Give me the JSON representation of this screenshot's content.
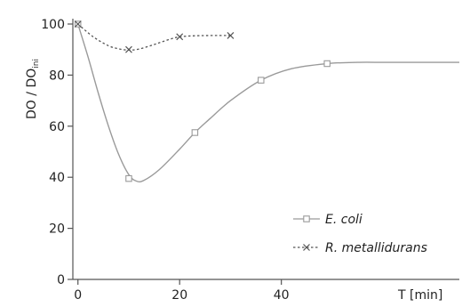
{
  "chart_data": {
    "type": "line",
    "xlabel": "T [min]",
    "ylabel_main": "DO / DO",
    "ylabel_sub": "ini",
    "xlim": [
      -1,
      75
    ],
    "ylim": [
      0,
      100
    ],
    "x_ticks": [
      0,
      20,
      40
    ],
    "y_ticks": [
      0,
      20,
      40,
      60,
      80,
      100
    ],
    "legend_position": "lower-right",
    "series": [
      {
        "name": "E. coli",
        "marker": "square",
        "line_style": "solid",
        "color": "#9a9a9a",
        "x": [
          0,
          10,
          23,
          36,
          49
        ],
        "y": [
          100,
          39.5,
          57.5,
          78,
          84.5
        ],
        "fit_x": [
          0,
          2,
          4,
          6,
          8,
          10,
          11.5,
          13,
          16,
          20,
          23,
          26,
          30,
          36,
          42,
          49,
          55,
          60,
          65,
          70,
          75
        ],
        "fit_y": [
          100,
          87,
          73,
          60,
          49,
          41,
          38.5,
          38.8,
          43,
          51,
          57.5,
          63,
          70,
          78,
          82.5,
          84.5,
          85,
          85,
          85,
          85,
          85
        ]
      },
      {
        "name": "R. metallidurans",
        "marker": "x",
        "line_style": "dotted",
        "color": "#555555",
        "x": [
          0,
          10,
          20,
          30
        ],
        "y": [
          100,
          90,
          95,
          95.5
        ],
        "fit_x": [
          0,
          3,
          6,
          8,
          10,
          12,
          15,
          18,
          20,
          23,
          26,
          30
        ],
        "fit_y": [
          100,
          95,
          91.5,
          90.3,
          89.8,
          90.2,
          92,
          94,
          95,
          95.4,
          95.5,
          95.5
        ]
      }
    ]
  }
}
